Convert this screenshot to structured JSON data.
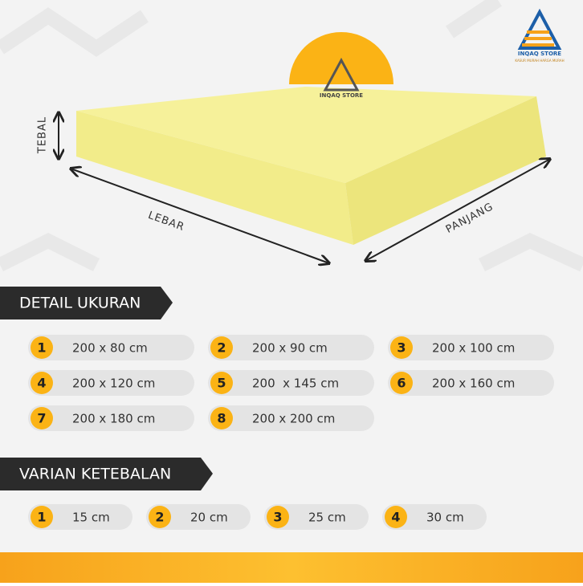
{
  "logo": {
    "name": "INQAQ STORE",
    "tagline": "KASUR MURAH HARGA MURAH"
  },
  "dimensions": {
    "thickness": "TEBAL",
    "width": "LEBAR",
    "length": "PANJANG"
  },
  "size_details": {
    "title": "DETAIL UKURAN",
    "items": [
      {
        "number": "1",
        "label": "200 x 80 cm"
      },
      {
        "number": "2",
        "label": "200 x 90 cm"
      },
      {
        "number": "3",
        "label": "200 x 100 cm"
      },
      {
        "number": "4",
        "label": "200 x 120 cm"
      },
      {
        "number": "5",
        "label": "200  x 145 cm"
      },
      {
        "number": "6",
        "label": "200 x 160 cm"
      },
      {
        "number": "7",
        "label": "200 x 180 cm"
      },
      {
        "number": "8",
        "label": "200 x 200 cm"
      }
    ]
  },
  "thickness_variants": {
    "title": "VARIAN KETEBALAN",
    "items": [
      {
        "number": "1",
        "label": "15 cm"
      },
      {
        "number": "2",
        "label": "20 cm"
      },
      {
        "number": "3",
        "label": "25 cm"
      },
      {
        "number": "4",
        "label": "30 cm"
      }
    ]
  }
}
